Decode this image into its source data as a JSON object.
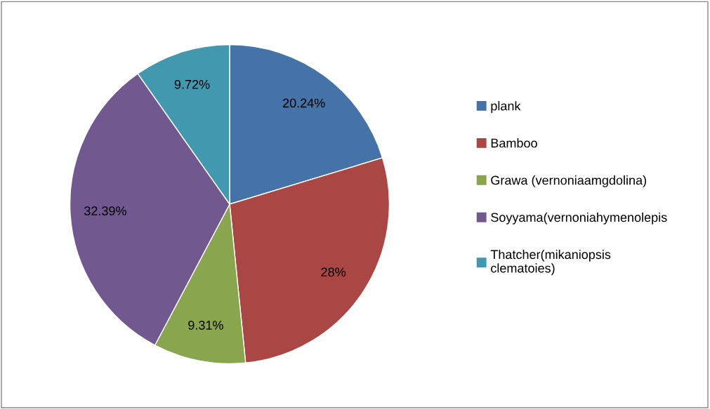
{
  "chart_data": {
    "type": "pie",
    "categories": [
      "plank",
      "Bamboo",
      "Grawa (vernoniaamgdolina)",
      "Soyyama(vernoniahymenolepis",
      "Thatcher(mikaniopsis clematoies)"
    ],
    "values": [
      20.24,
      28,
      9.31,
      32.39,
      9.72
    ],
    "value_labels": [
      "20.24%",
      "28%",
      "9.31%",
      "32.39%",
      "9.72%"
    ],
    "colors": [
      "#4572a7",
      "#aa4643",
      "#89a54e",
      "#71588f",
      "#4198af"
    ],
    "legend": "right"
  }
}
